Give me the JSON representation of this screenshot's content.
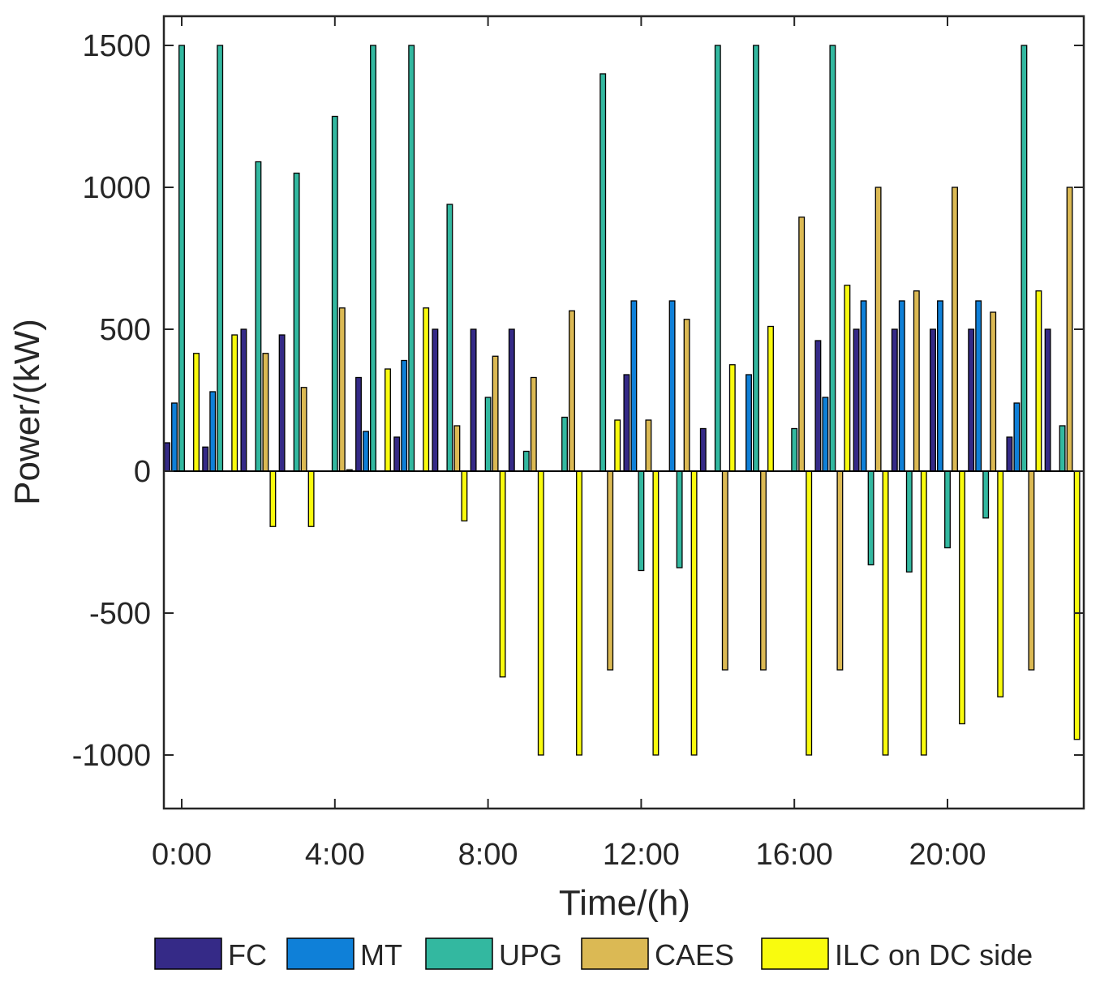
{
  "chart_data": {
    "type": "bar",
    "title": "",
    "xlabel": "Time/(h)",
    "ylabel": "Power/(kW)",
    "ylim": [
      -1200,
      1500
    ],
    "yticks": [
      -1000,
      -500,
      0,
      500,
      1000,
      1500
    ],
    "ytick_labels": [
      "-1000",
      "-500",
      "0",
      "500",
      "1000",
      "1500"
    ],
    "xtick_labels": [
      "0:00",
      "4:00",
      "8:00",
      "12:00",
      "16:00",
      "20:00"
    ],
    "xtick_positions": [
      0,
      4,
      8,
      12,
      16,
      20
    ],
    "categories": [
      0,
      1,
      2,
      3,
      4,
      5,
      6,
      7,
      8,
      9,
      10,
      11,
      12,
      13,
      14,
      15,
      16,
      17,
      18,
      19,
      20,
      21,
      22,
      23
    ],
    "legend_position": "bottom",
    "series": [
      {
        "name": "FC",
        "color": "#352a87",
        "values": [
          100,
          85,
          500,
          480,
          0,
          330,
          120,
          500,
          500,
          500,
          0,
          0,
          340,
          0,
          150,
          0,
          0,
          460,
          500,
          500,
          500,
          500,
          120,
          500
        ]
      },
      {
        "name": "MT",
        "color": "#0f80d8",
        "values": [
          240,
          280,
          0,
          0,
          0,
          140,
          390,
          0,
          0,
          0,
          0,
          0,
          600,
          600,
          0,
          340,
          0,
          260,
          600,
          600,
          600,
          600,
          240,
          0
        ]
      },
      {
        "name": "UPG",
        "color": "#33b8a0",
        "values": [
          1500,
          1500,
          1090,
          1050,
          1250,
          1500,
          1500,
          940,
          260,
          70,
          190,
          1400,
          -350,
          -340,
          1500,
          1500,
          150,
          1500,
          -330,
          -355,
          -270,
          -165,
          1500,
          160
        ]
      },
      {
        "name": "CAES",
        "color": "#dbb954",
        "values": [
          0,
          0,
          415,
          295,
          575,
          0,
          0,
          160,
          405,
          330,
          565,
          -700,
          180,
          535,
          -700,
          -700,
          895,
          -700,
          1000,
          635,
          1000,
          560,
          -700,
          1000
        ]
      },
      {
        "name": "ILC on DC side",
        "color": "#f9fb0e",
        "values": [
          415,
          480,
          -195,
          -195,
          5,
          360,
          575,
          -175,
          -725,
          -1000,
          -1000,
          180,
          -1000,
          -1000,
          375,
          510,
          -1000,
          655,
          -1000,
          -1000,
          -890,
          -795,
          635,
          -945
        ]
      }
    ]
  }
}
